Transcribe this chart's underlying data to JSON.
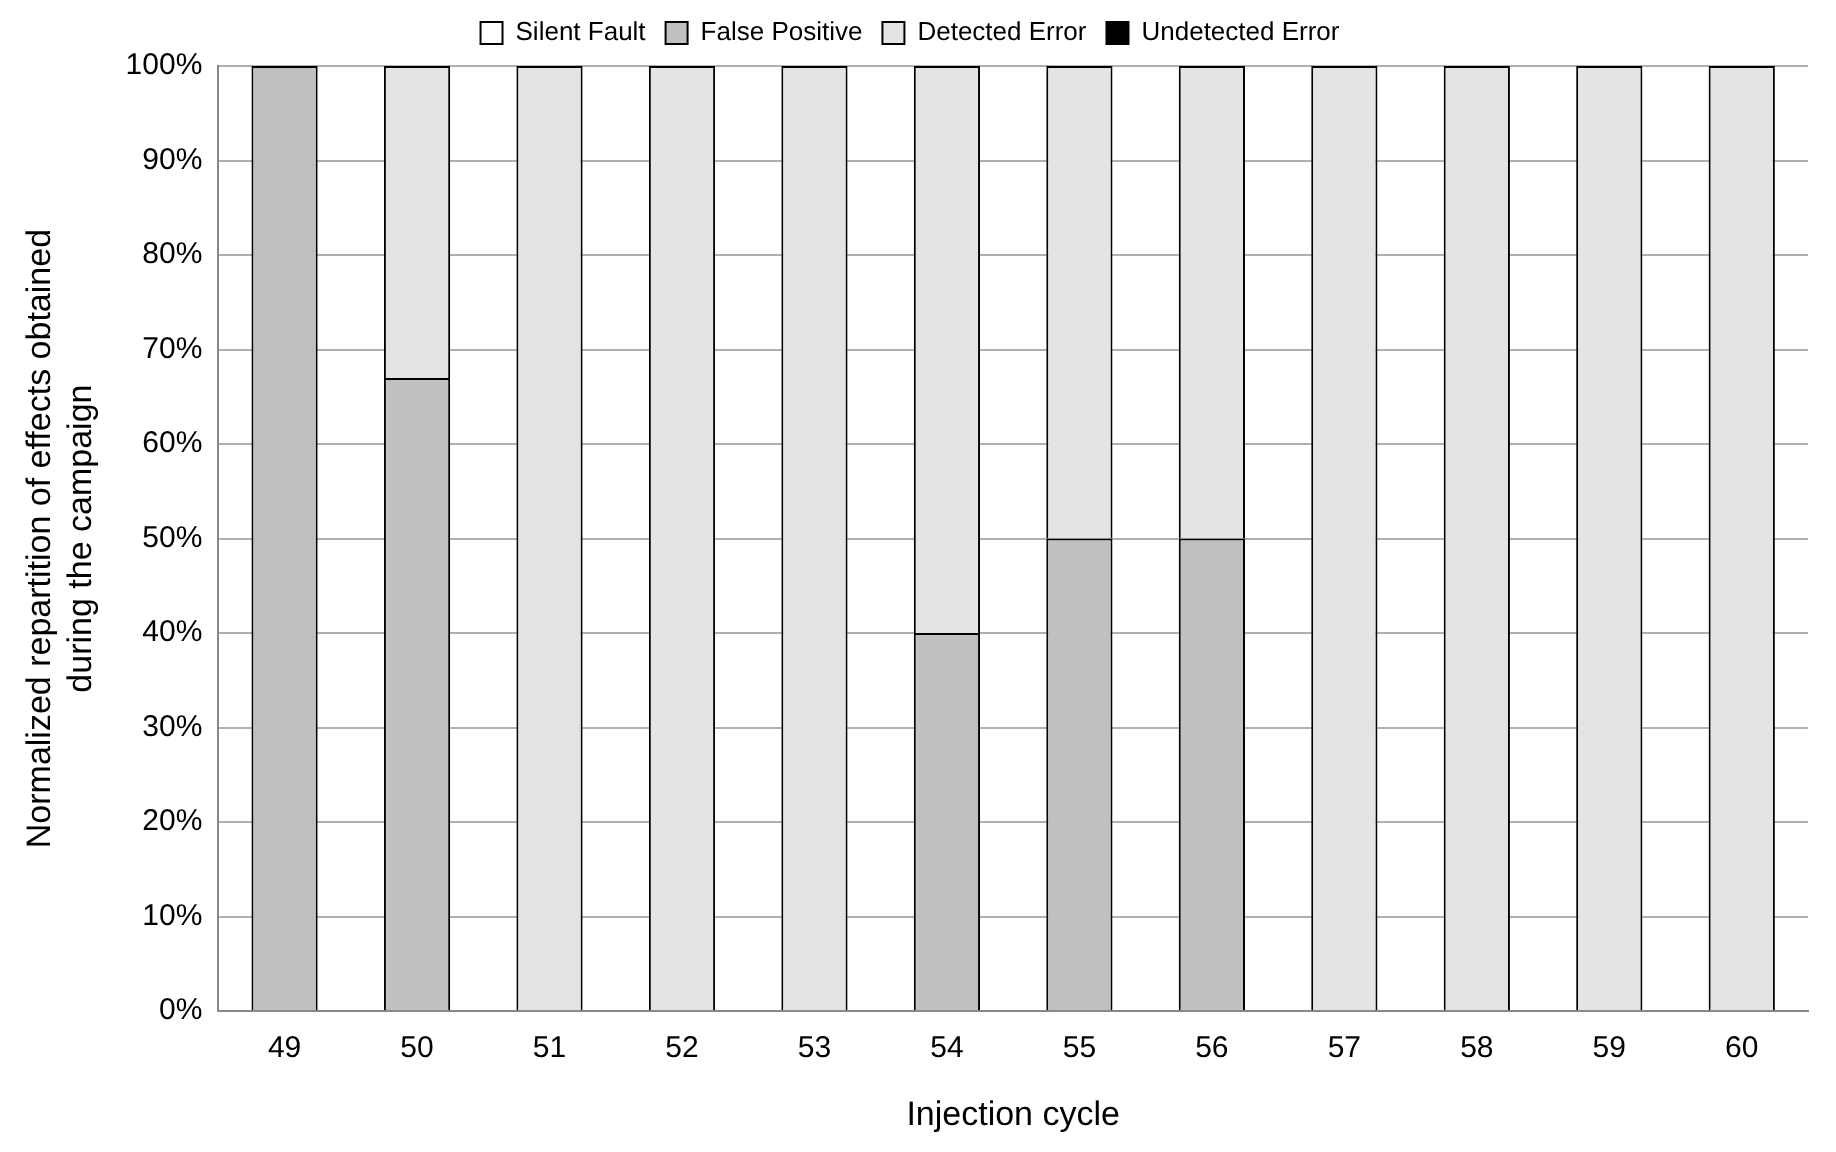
{
  "chart_data": {
    "type": "bar",
    "stacked": true,
    "xlabel": "Injection cycle",
    "ylabel": "Normalized repartition of effects obtained\nduring the campaign",
    "categories": [
      "49",
      "50",
      "51",
      "52",
      "53",
      "54",
      "55",
      "56",
      "57",
      "58",
      "59",
      "60"
    ],
    "series": [
      {
        "name": "Silent Fault",
        "color": "#ffffff",
        "values": [
          0,
          0,
          0,
          0,
          0,
          0,
          0,
          0,
          0,
          0,
          0,
          0
        ]
      },
      {
        "name": "False Positive",
        "color": "#c0c0c0",
        "values": [
          100,
          67,
          0,
          0,
          0,
          40,
          50,
          50,
          0,
          0,
          0,
          0
        ]
      },
      {
        "name": "Detected Error",
        "color": "#e4e4e4",
        "values": [
          0,
          33,
          100,
          100,
          100,
          60,
          50,
          50,
          100,
          100,
          100,
          100
        ]
      },
      {
        "name": "Undetected Error",
        "color": "#000000",
        "values": [
          0,
          0,
          0,
          0,
          0,
          0,
          0,
          0,
          0,
          0,
          0,
          0
        ]
      }
    ],
    "ylim": [
      0,
      100
    ],
    "yticks": [
      {
        "value": 0,
        "label": "0%"
      },
      {
        "value": 10,
        "label": "10%"
      },
      {
        "value": 20,
        "label": "20%"
      },
      {
        "value": 30,
        "label": "30%"
      },
      {
        "value": 40,
        "label": "40%"
      },
      {
        "value": 50,
        "label": "50%"
      },
      {
        "value": 60,
        "label": "60%"
      },
      {
        "value": 70,
        "label": "70%"
      },
      {
        "value": 80,
        "label": "80%"
      },
      {
        "value": 90,
        "label": "90%"
      },
      {
        "value": 100,
        "label": "100%"
      }
    ],
    "grid": "y",
    "legend": "top"
  }
}
